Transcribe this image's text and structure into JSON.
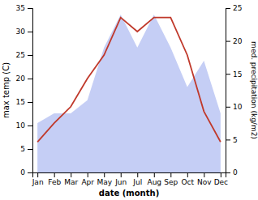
{
  "chart_data": {
    "type": "line",
    "categories": [
      "Jan",
      "Feb",
      "Mar",
      "Apr",
      "May",
      "Jun",
      "Jul",
      "Aug",
      "Sep",
      "Oct",
      "Nov",
      "Dec"
    ],
    "xlabel": "date (month)",
    "ylabel": "max temp (C)",
    "y2label": "med. precipitation (kg/m2)",
    "series": [
      {
        "type": "area",
        "axis": "y2",
        "color": "#c5cef5",
        "values": [
          7.5,
          9,
          9,
          11,
          19,
          24,
          19,
          24,
          19,
          13,
          17,
          9
        ]
      },
      {
        "type": "line",
        "color": "#c0392b",
        "values": [
          6.5,
          10.5,
          14,
          20,
          25,
          33,
          30,
          33,
          33,
          25,
          13,
          6.5
        ]
      }
    ],
    "ylim": [
      0,
      35
    ],
    "yticks": [
      0,
      5,
      10,
      15,
      20,
      25,
      30,
      35
    ],
    "y2lim": [
      0,
      25
    ],
    "y2ticks": [
      0,
      5,
      10,
      15,
      20,
      25
    ],
    "grid": false
  }
}
